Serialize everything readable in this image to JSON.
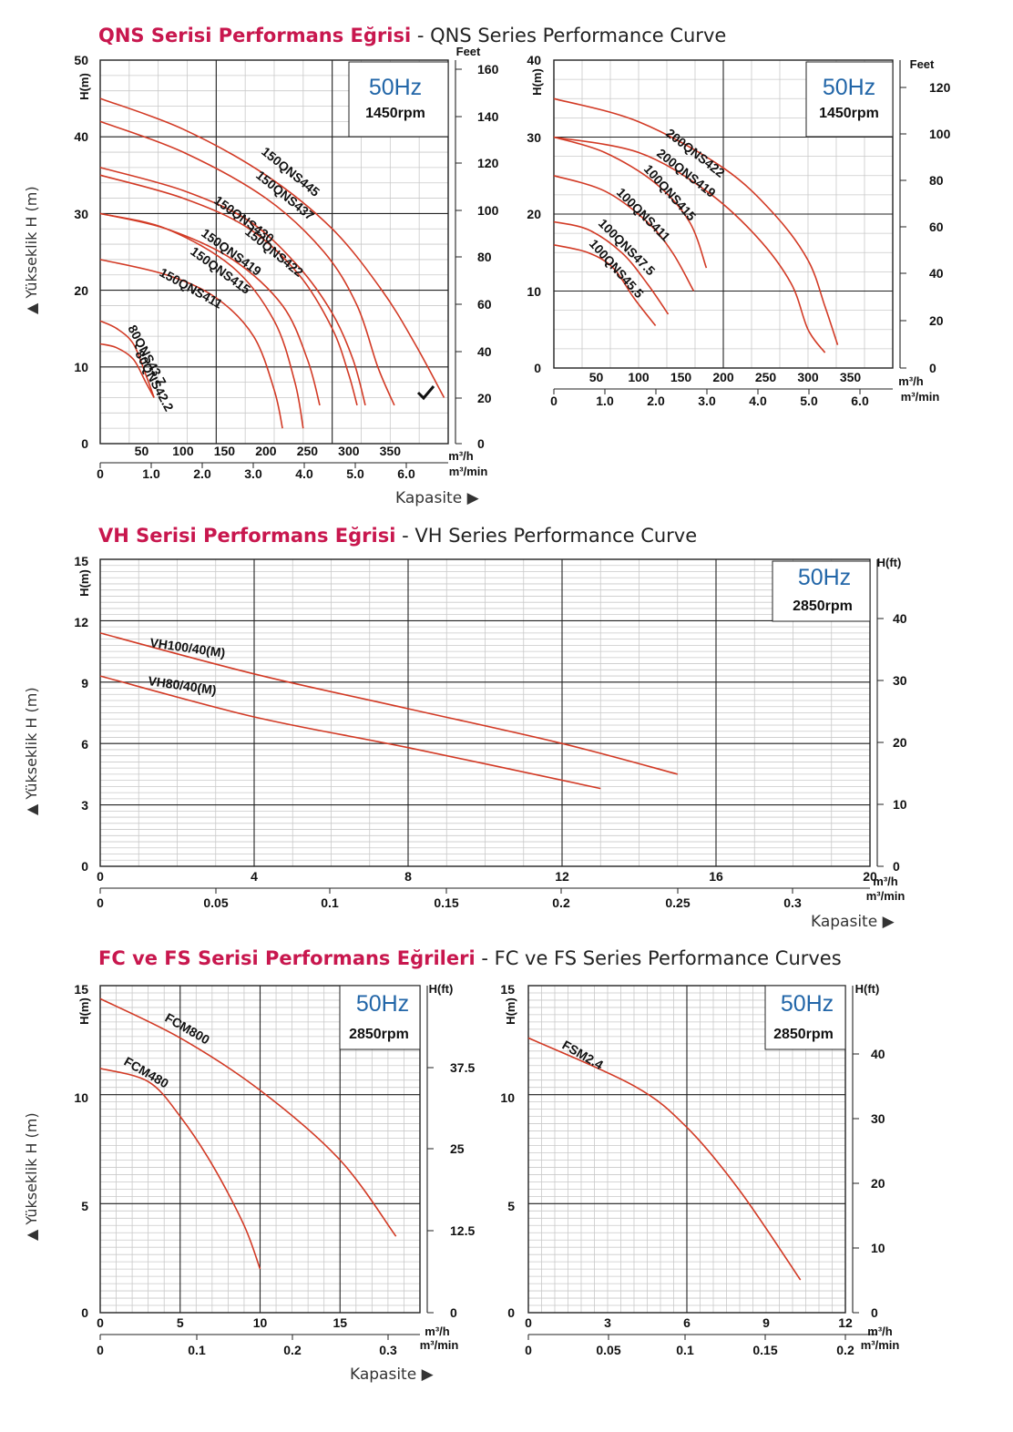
{
  "sections": {
    "qns": {
      "title_tr": "QNS Serisi Performans Eğrisi",
      "title_en": " - QNS Series Performance Curve"
    },
    "vh": {
      "title_tr": "VH Serisi Performans Eğrisi",
      "title_en": " - VH Series Performance Curve"
    },
    "fc": {
      "title_tr": "FC ve FS Serisi Performans Eğrileri",
      "title_en": " - FC ve FS Series Performance Curves"
    }
  },
  "labels": {
    "yukseklik": "▲ Yükseklik H (m)",
    "kapasite": "Kapasite ▶",
    "h_m": "H(m)",
    "feet": "Feet",
    "h_ft": "H(ft)",
    "m3h": "m³/h",
    "m3min": "m³/min"
  },
  "colors": {
    "curve": "#d23a25",
    "title_accent": "#c8174e",
    "hz": "#2266a8"
  },
  "chart_data": [
    {
      "id": "qns_left",
      "type": "line",
      "frequency": "50Hz",
      "speed": "1450rpm",
      "ylim": [
        0,
        50
      ],
      "xlim": [
        0,
        420
      ],
      "y_ticks": [
        0,
        10,
        20,
        30,
        40,
        50
      ],
      "y2_ticks": [
        "0",
        "20",
        "40",
        "60",
        "80",
        "100",
        "120",
        "140",
        "160"
      ],
      "x_ticks": [
        50,
        100,
        150,
        200,
        250,
        300,
        350
      ],
      "x2_ticks": [
        "0",
        "1.0",
        "2.0",
        "3.0",
        "4.0",
        "5.0",
        "6.0"
      ],
      "series": [
        {
          "name": "150QNS445",
          "points": [
            [
              0,
              45
            ],
            [
              100,
              41
            ],
            [
              200,
              35
            ],
            [
              280,
              28
            ],
            [
              340,
              20
            ],
            [
              380,
              13
            ],
            [
              415,
              6
            ]
          ]
        },
        {
          "name": "150QNS437",
          "points": [
            [
              0,
              42
            ],
            [
              100,
              38
            ],
            [
              200,
              32
            ],
            [
              270,
              25
            ],
            [
              310,
              18
            ],
            [
              335,
              10
            ],
            [
              355,
              5
            ]
          ]
        },
        {
          "name": "150QNS430",
          "points": [
            [
              0,
              36
            ],
            [
              100,
              33
            ],
            [
              180,
              29
            ],
            [
              240,
              23
            ],
            [
              280,
              17
            ],
            [
              305,
              11
            ],
            [
              320,
              5
            ]
          ]
        },
        {
          "name": "150QNS422",
          "points": [
            [
              0,
              35
            ],
            [
              100,
              32
            ],
            [
              180,
              28
            ],
            [
              240,
              22
            ],
            [
              280,
              15
            ],
            [
              300,
              9
            ],
            [
              310,
              5
            ]
          ]
        },
        {
          "name": "150QNS419",
          "points": [
            [
              0,
              30
            ],
            [
              80,
              28
            ],
            [
              160,
              24
            ],
            [
              220,
              18
            ],
            [
              250,
              11
            ],
            [
              265,
              5
            ]
          ]
        },
        {
          "name": "150QNS415",
          "points": [
            [
              0,
              30
            ],
            [
              80,
              28
            ],
            [
              160,
              23
            ],
            [
              210,
              16
            ],
            [
              235,
              8
            ],
            [
              245,
              2
            ]
          ]
        },
        {
          "name": "150QNS411",
          "points": [
            [
              0,
              24
            ],
            [
              80,
              22
            ],
            [
              140,
              19
            ],
            [
              185,
              14
            ],
            [
              210,
              7
            ],
            [
              220,
              2
            ]
          ]
        },
        {
          "name": "80QNS43.7",
          "points": [
            [
              0,
              16
            ],
            [
              20,
              15
            ],
            [
              40,
              13
            ],
            [
              55,
              9
            ],
            [
              65,
              6
            ]
          ]
        },
        {
          "name": "80QNS42.2",
          "points": [
            [
              0,
              13
            ],
            [
              20,
              12.5
            ],
            [
              40,
              11
            ],
            [
              55,
              8
            ],
            [
              65,
              6
            ]
          ]
        }
      ]
    },
    {
      "id": "qns_right",
      "type": "line",
      "frequency": "50Hz",
      "speed": "1450rpm",
      "ylim": [
        0,
        40
      ],
      "xlim": [
        0,
        400
      ],
      "y_ticks": [
        0,
        10,
        20,
        30,
        40
      ],
      "y2_ticks": [
        "0",
        "20",
        "40",
        "60",
        "80",
        "100",
        "120"
      ],
      "x_ticks": [
        50,
        100,
        150,
        200,
        250,
        300,
        350
      ],
      "x2_ticks": [
        "0",
        "1.0",
        "2.0",
        "3.0",
        "4.0",
        "5.0",
        "6.0"
      ],
      "series": [
        {
          "name": "200QNS422",
          "points": [
            [
              0,
              35
            ],
            [
              100,
              32
            ],
            [
              200,
              26
            ],
            [
              260,
              20
            ],
            [
              300,
              14
            ],
            [
              320,
              8
            ],
            [
              335,
              3
            ]
          ]
        },
        {
          "name": "200QNS419",
          "points": [
            [
              0,
              30
            ],
            [
              100,
              28
            ],
            [
              180,
              23
            ],
            [
              240,
              17
            ],
            [
              280,
              11
            ],
            [
              300,
              5
            ],
            [
              320,
              2
            ]
          ]
        },
        {
          "name": "100QNS415",
          "points": [
            [
              0,
              30
            ],
            [
              60,
              28
            ],
            [
              120,
              24
            ],
            [
              160,
              19
            ],
            [
              180,
              13
            ]
          ]
        },
        {
          "name": "100QNS411",
          "points": [
            [
              0,
              25
            ],
            [
              60,
              23
            ],
            [
              110,
              19
            ],
            [
              140,
              15
            ],
            [
              165,
              10
            ]
          ]
        },
        {
          "name": "100QNS47.5",
          "points": [
            [
              0,
              19
            ],
            [
              40,
              18
            ],
            [
              80,
              15
            ],
            [
              110,
              11
            ],
            [
              135,
              7
            ]
          ]
        },
        {
          "name": "100QNS45.5",
          "points": [
            [
              0,
              16
            ],
            [
              40,
              15
            ],
            [
              70,
              13
            ],
            [
              95,
              9
            ],
            [
              120,
              5.5
            ]
          ]
        }
      ]
    },
    {
      "id": "vh",
      "type": "line",
      "frequency": "50Hz",
      "speed": "2850rpm",
      "ylim": [
        0,
        15
      ],
      "xlim": [
        0,
        20
      ],
      "y_ticks": [
        0,
        3,
        6,
        9,
        12,
        15
      ],
      "y2_ticks": [
        "0",
        "10",
        "20",
        "30",
        "40"
      ],
      "x_ticks": [
        0,
        4,
        8,
        12,
        16,
        20
      ],
      "x2_ticks": [
        "0",
        "0.05",
        "0.1",
        "0.15",
        "0.2",
        "0.25",
        "0.3"
      ],
      "series": [
        {
          "name": "VH100/40(M)",
          "points": [
            [
              0,
              11.4
            ],
            [
              4,
              9.4
            ],
            [
              8,
              7.7
            ],
            [
              12,
              6.0
            ],
            [
              15,
              4.5
            ]
          ]
        },
        {
          "name": "VH80/40(M)",
          "points": [
            [
              0,
              9.3
            ],
            [
              4,
              7.3
            ],
            [
              8,
              5.8
            ],
            [
              13,
              3.8
            ]
          ]
        }
      ]
    },
    {
      "id": "fcm",
      "type": "line",
      "frequency": "50Hz",
      "speed": "2850rpm",
      "ylim": [
        0,
        15
      ],
      "xlim": [
        0,
        20
      ],
      "y_ticks": [
        0,
        5,
        10,
        15
      ],
      "y2_ticks": [
        "0",
        "12.5",
        "25",
        "37.5"
      ],
      "x_ticks": [
        0,
        5,
        10,
        15
      ],
      "x2_ticks": [
        "0",
        "0.1",
        "0.2",
        "0.3"
      ],
      "series": [
        {
          "name": "FCM800",
          "points": [
            [
              0,
              14.4
            ],
            [
              5,
              12.6
            ],
            [
              10,
              10.2
            ],
            [
              15,
              7.0
            ],
            [
              18.5,
              3.5
            ]
          ]
        },
        {
          "name": "FCM480",
          "points": [
            [
              0,
              11.2
            ],
            [
              3,
              10.6
            ],
            [
              5,
              9.0
            ],
            [
              7,
              6.8
            ],
            [
              9,
              4.0
            ],
            [
              10,
              2.0
            ]
          ]
        }
      ]
    },
    {
      "id": "fsm",
      "type": "line",
      "frequency": "50Hz",
      "speed": "2850rpm",
      "ylim": [
        0,
        15
      ],
      "xlim": [
        0,
        12
      ],
      "y_ticks": [
        0,
        5,
        10,
        15
      ],
      "y2_ticks": [
        "0",
        "10",
        "20",
        "30",
        "40"
      ],
      "x_ticks": [
        0,
        3,
        6,
        9,
        12
      ],
      "x2_ticks": [
        "0",
        "0.05",
        "0.1",
        "0.15",
        "0.2"
      ],
      "series": [
        {
          "name": "FSM2.4",
          "points": [
            [
              0,
              12.6
            ],
            [
              4,
              10.4
            ],
            [
              6,
              8.5
            ],
            [
              8,
              5.6
            ],
            [
              10.3,
              1.5
            ]
          ]
        }
      ]
    }
  ]
}
